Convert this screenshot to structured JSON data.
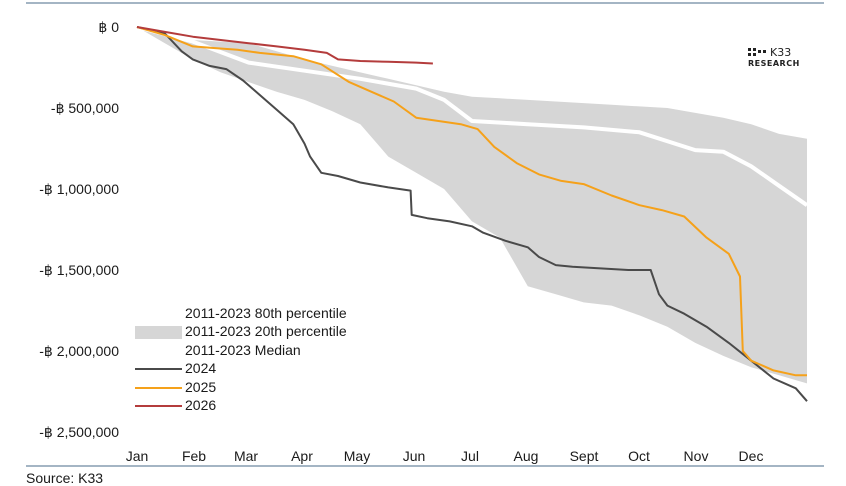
{
  "chart_data": {
    "type": "area",
    "title": "",
    "xlabel": "",
    "ylabel": "",
    "x_categories": [
      "Jan",
      "Feb",
      "Mar",
      "Apr",
      "May",
      "Jun",
      "Jul",
      "Aug",
      "Sept",
      "Oct",
      "Nov",
      "Dec"
    ],
    "y_ticks": [
      0,
      -500000,
      -1000000,
      -1500000,
      -2000000,
      -2500000
    ],
    "y_tick_labels": [
      "฿ 0",
      "-฿ 500,000",
      "-฿ 1,000,000",
      "-฿ 1,500,000",
      "-฿ 2,000,000",
      "-฿ 2,500,000"
    ],
    "ylim": [
      -2600000,
      0
    ],
    "xlim": [
      0,
      12
    ],
    "band": {
      "x": [
        0,
        0.5,
        1,
        1.5,
        2,
        2.5,
        3,
        3.5,
        4,
        4.5,
        5,
        5.5,
        6,
        6.5,
        7,
        7.5,
        8,
        8.5,
        9,
        9.5,
        10,
        10.5,
        11,
        11.5,
        12
      ],
      "upper": [
        0,
        -40000,
        -80000,
        -90000,
        -100000,
        -150000,
        -200000,
        -240000,
        -280000,
        -320000,
        -360000,
        -400000,
        -430000,
        -440000,
        -450000,
        -460000,
        -470000,
        -480000,
        -490000,
        -500000,
        -530000,
        -560000,
        -600000,
        -660000,
        -690000
      ],
      "lower": [
        0,
        -100000,
        -200000,
        -280000,
        -340000,
        -400000,
        -450000,
        -520000,
        -600000,
        -800000,
        -900000,
        -1000000,
        -1200000,
        -1300000,
        -1600000,
        -1650000,
        -1700000,
        -1720000,
        -1780000,
        -1850000,
        -1950000,
        -2030000,
        -2100000,
        -2150000,
        -2200000
      ]
    },
    "series": [
      {
        "name": "2011-2023 Median",
        "color": "#ffffff",
        "x": [
          0,
          1,
          2,
          3,
          4,
          5,
          5.5,
          6,
          7,
          8,
          9,
          10,
          10.5,
          11,
          11.5,
          12
        ],
        "values": [
          0,
          -90000,
          -220000,
          -270000,
          -320000,
          -380000,
          -450000,
          -580000,
          -600000,
          -620000,
          -650000,
          -760000,
          -770000,
          -860000,
          -980000,
          -1100000
        ]
      },
      {
        "name": "2024",
        "color": "#4a4a4a",
        "x": [
          0,
          0.5,
          0.8,
          1,
          1.3,
          1.6,
          1.9,
          2.2,
          2.5,
          2.8,
          3,
          3.1,
          3.3,
          3.6,
          4,
          4.5,
          4.9,
          4.92,
          5.2,
          5.6,
          6,
          6.2,
          6.6,
          7,
          7.2,
          7.5,
          7.8,
          8.3,
          8.8,
          9.2,
          9.35,
          9.5,
          9.8,
          10.2,
          10.6,
          11,
          11.4,
          11.8,
          12
        ],
        "values": [
          0,
          -40000,
          -150000,
          -200000,
          -240000,
          -260000,
          -330000,
          -420000,
          -510000,
          -600000,
          -720000,
          -800000,
          -900000,
          -920000,
          -960000,
          -990000,
          -1010000,
          -1160000,
          -1180000,
          -1200000,
          -1230000,
          -1270000,
          -1320000,
          -1360000,
          -1420000,
          -1470000,
          -1480000,
          -1490000,
          -1500000,
          -1500000,
          -1650000,
          -1720000,
          -1770000,
          -1850000,
          -1950000,
          -2060000,
          -2170000,
          -2230000,
          -2310000
        ]
      },
      {
        "name": "2025",
        "color": "#f5a11a",
        "x": [
          0,
          0.5,
          1,
          1.4,
          1.8,
          2.2,
          2.8,
          3.3,
          3.8,
          4.2,
          4.6,
          5,
          5.4,
          5.8,
          6.1,
          6.4,
          6.8,
          7.2,
          7.6,
          8,
          8.5,
          9,
          9.4,
          9.8,
          10.2,
          10.6,
          10.8,
          10.85,
          11,
          11.4,
          11.8,
          12
        ],
        "values": [
          0,
          -50000,
          -120000,
          -130000,
          -140000,
          -160000,
          -180000,
          -230000,
          -340000,
          -400000,
          -460000,
          -560000,
          -580000,
          -600000,
          -630000,
          -740000,
          -840000,
          -910000,
          -950000,
          -970000,
          -1040000,
          -1100000,
          -1130000,
          -1170000,
          -1300000,
          -1400000,
          -1540000,
          -2000000,
          -2060000,
          -2120000,
          -2150000,
          -2150000
        ]
      },
      {
        "name": "2026",
        "color": "#b43c3c",
        "x": [
          0,
          0.5,
          1,
          1.5,
          2,
          2.5,
          3,
          3.4,
          3.6,
          4,
          4.5,
          5,
          5.3
        ],
        "values": [
          0,
          -30000,
          -60000,
          -80000,
          -100000,
          -120000,
          -140000,
          -160000,
          -200000,
          -210000,
          -215000,
          -220000,
          -225000
        ]
      }
    ],
    "legend": {
      "position": "bottom-left",
      "entries": [
        "2011-2023 80th percentile",
        "2011-2023 20th percentile",
        "2011-2023 Median",
        "2024",
        "2025",
        "2026"
      ]
    },
    "grid": false
  },
  "logo": {
    "main": "K33",
    "sub": "RESEARCH"
  },
  "source": "Source: K33",
  "colors": {
    "band": "#d6d6d6",
    "axis": "#4a6b8a"
  }
}
